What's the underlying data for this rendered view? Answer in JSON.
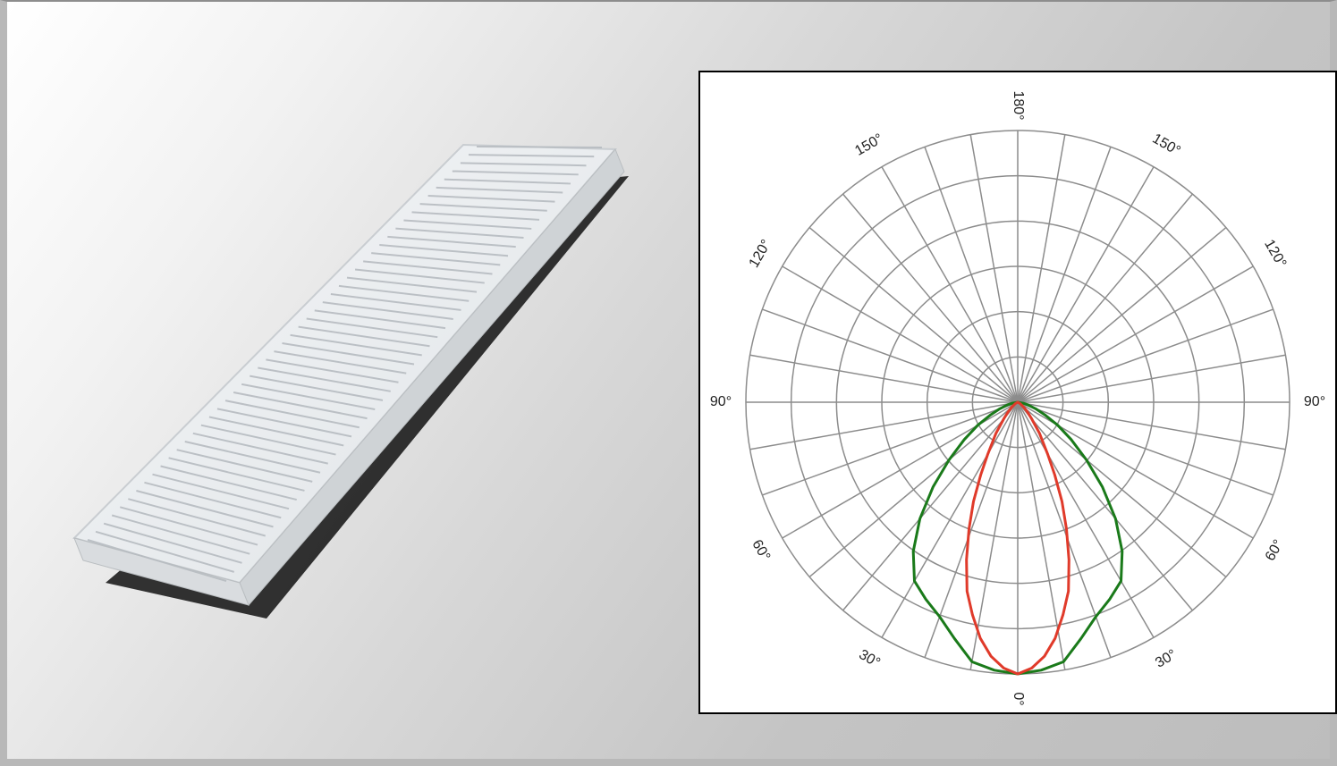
{
  "colors": {
    "background": "#c9c9c9",
    "grid": "#8c8c8c",
    "series_green": "#1a7a1a",
    "series_red": "#e03a2a"
  },
  "product_image": {
    "subject": "clear ribbed linear LED lens profile"
  },
  "chart_data": {
    "type": "polar",
    "angle_labels": [
      {
        "text": "180°",
        "angle": 180,
        "side": "center"
      },
      {
        "text": "150°",
        "angle": 150,
        "side": "left"
      },
      {
        "text": "150°",
        "angle": 150,
        "side": "right"
      },
      {
        "text": "120°",
        "angle": 120,
        "side": "left"
      },
      {
        "text": "120°",
        "angle": 120,
        "side": "right"
      },
      {
        "text": "90°",
        "angle": 90,
        "side": "left"
      },
      {
        "text": "90°",
        "angle": 90,
        "side": "right"
      },
      {
        "text": "60°",
        "angle": 60,
        "side": "left"
      },
      {
        "text": "60°",
        "angle": 60,
        "side": "right"
      },
      {
        "text": "30°",
        "angle": 30,
        "side": "left"
      },
      {
        "text": "30°",
        "angle": 30,
        "side": "right"
      },
      {
        "text": "0°",
        "angle": 0,
        "side": "center"
      }
    ],
    "rings": 6,
    "spoke_step_deg": 10,
    "r_max": 1,
    "grid": true,
    "series": [
      {
        "color": "#1a7a1a",
        "points": [
          [
            0,
            1.0
          ],
          [
            5,
            0.99
          ],
          [
            10,
            0.97
          ],
          [
            15,
            0.9
          ],
          [
            20,
            0.84
          ],
          [
            25,
            0.8
          ],
          [
            30,
            0.76
          ],
          [
            35,
            0.67
          ],
          [
            40,
            0.56
          ],
          [
            45,
            0.44
          ],
          [
            50,
            0.33
          ],
          [
            55,
            0.24
          ],
          [
            60,
            0.17
          ],
          [
            65,
            0.11
          ],
          [
            70,
            0.07
          ],
          [
            75,
            0.04
          ],
          [
            80,
            0.02
          ],
          [
            90,
            0.0
          ]
        ]
      },
      {
        "color": "#e03a2a",
        "points": [
          [
            0,
            1.0
          ],
          [
            3,
            0.98
          ],
          [
            6,
            0.94
          ],
          [
            9,
            0.88
          ],
          [
            12,
            0.8
          ],
          [
            15,
            0.72
          ],
          [
            18,
            0.61
          ],
          [
            21,
            0.5
          ],
          [
            24,
            0.4
          ],
          [
            27,
            0.3
          ],
          [
            30,
            0.22
          ],
          [
            35,
            0.14
          ],
          [
            40,
            0.08
          ],
          [
            45,
            0.05
          ],
          [
            50,
            0.03
          ],
          [
            60,
            0.01
          ],
          [
            90,
            0.0
          ]
        ]
      }
    ]
  }
}
